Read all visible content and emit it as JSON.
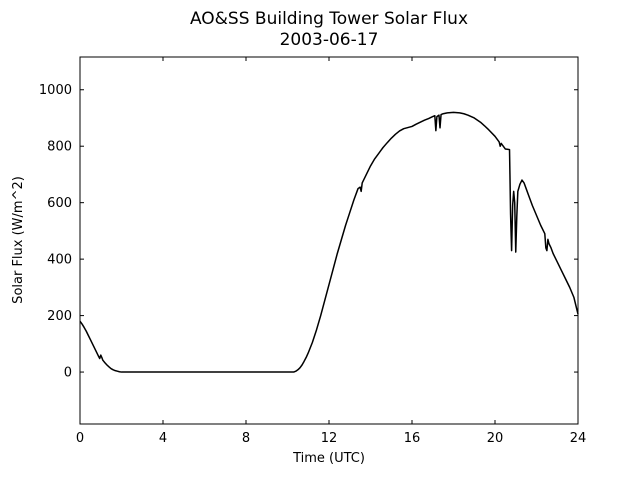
{
  "figure": {
    "background": "#ffffff",
    "foreground": "#000000"
  },
  "chart_data": {
    "type": "line",
    "title": "AO&SS Building Tower Solar Flux",
    "subtitle": "2003-06-17",
    "xlabel": "Time (UTC)",
    "ylabel": "Solar Flux (W/m^2)",
    "xlim": [
      0,
      24
    ],
    "ylim": [
      -184,
      1116
    ],
    "xticks": [
      0,
      4,
      8,
      12,
      16,
      20,
      24
    ],
    "yticks": [
      0,
      200,
      400,
      600,
      800,
      1000
    ],
    "grid": false,
    "legend_position": "none",
    "line_color": "#000000",
    "line_width": 1.5,
    "series": [
      {
        "name": "solar_flux",
        "x": [
          0,
          0.1,
          0.2,
          0.3,
          0.4,
          0.5,
          0.6,
          0.7,
          0.8,
          0.9,
          0.95,
          1.0,
          1.05,
          1.1,
          1.2,
          1.3,
          1.4,
          1.5,
          1.6,
          1.7,
          1.8,
          1.9,
          2.0,
          2.5,
          3.0,
          3.5,
          4.0,
          4.5,
          5.0,
          5.5,
          6.0,
          6.5,
          7.0,
          7.5,
          8.0,
          8.5,
          9.0,
          9.5,
          10.0,
          10.3,
          10.4,
          10.5,
          10.6,
          10.7,
          10.8,
          10.9,
          11.0,
          11.2,
          11.4,
          11.6,
          11.8,
          12.0,
          12.2,
          12.4,
          12.6,
          12.8,
          13.0,
          13.2,
          13.4,
          13.5,
          13.55,
          13.6,
          13.8,
          14.0,
          14.2,
          14.4,
          14.6,
          14.8,
          15.0,
          15.2,
          15.4,
          15.6,
          15.8,
          16.0,
          16.2,
          16.4,
          16.6,
          16.8,
          17.0,
          17.1,
          17.15,
          17.2,
          17.3,
          17.35,
          17.4,
          17.5,
          17.7,
          18.0,
          18.3,
          18.5,
          18.7,
          19.0,
          19.3,
          19.5,
          19.7,
          20.0,
          20.2,
          20.25,
          20.3,
          20.5,
          20.7,
          20.72,
          20.75,
          20.78,
          20.8,
          20.85,
          20.9,
          20.95,
          21.0,
          21.05,
          21.1,
          21.2,
          21.3,
          21.4,
          21.5,
          21.6,
          21.7,
          21.8,
          22.0,
          22.2,
          22.4,
          22.45,
          22.5,
          22.55,
          22.6,
          22.7,
          22.8,
          23.0,
          23.2,
          23.4,
          23.6,
          23.8,
          24.0
        ],
        "y": [
          180,
          170,
          158,
          145,
          130,
          115,
          100,
          85,
          70,
          55,
          48,
          60,
          52,
          42,
          33,
          25,
          18,
          12,
          8,
          5,
          3,
          1,
          0,
          0,
          0,
          0,
          0,
          0,
          0,
          0,
          0,
          0,
          0,
          0,
          0,
          0,
          0,
          0,
          0,
          0,
          3,
          8,
          15,
          25,
          38,
          52,
          68,
          105,
          150,
          200,
          255,
          310,
          365,
          420,
          470,
          520,
          565,
          610,
          650,
          655,
          640,
          670,
          700,
          730,
          755,
          775,
          795,
          812,
          828,
          842,
          854,
          862,
          866,
          870,
          878,
          885,
          892,
          898,
          905,
          908,
          855,
          905,
          910,
          865,
          912,
          915,
          918,
          920,
          918,
          915,
          910,
          900,
          885,
          872,
          858,
          835,
          815,
          800,
          810,
          790,
          788,
          700,
          560,
          480,
          430,
          590,
          640,
          600,
          425,
          550,
          640,
          665,
          680,
          670,
          650,
          630,
          610,
          590,
          555,
          520,
          490,
          440,
          430,
          470,
          455,
          440,
          420,
          390,
          360,
          330,
          300,
          265,
          205
        ]
      }
    ]
  }
}
